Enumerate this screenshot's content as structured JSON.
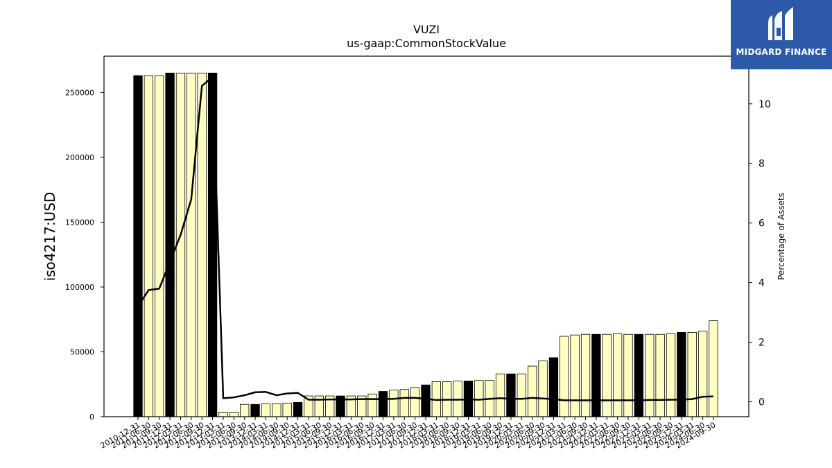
{
  "chart_data": {
    "type": "bar",
    "title": "VUZI",
    "subtitle": "us-gaap:CommonStockValue",
    "ylabel": "iso4217:USD",
    "y2label": "Percentage of Assets",
    "ylim": [
      0,
      278000
    ],
    "y2lim": [
      -0.5,
      11.6
    ],
    "yticks": [
      0,
      50000,
      100000,
      150000,
      200000,
      250000
    ],
    "y2ticks": [
      0,
      2,
      4,
      6,
      8,
      10
    ],
    "grid": false,
    "categories": [
      "2010-12-31",
      "2011-06-30",
      "2011-09-30",
      "2011-12-31",
      "2012-03-31",
      "2012-06-30",
      "2012-09-30",
      "2012-12-31",
      "2013-03-31",
      "2013-06-30",
      "2013-09-30",
      "2013-12-31",
      "2014-03-31",
      "2014-06-30",
      "2014-09-30",
      "2014-12-31",
      "2015-03-31",
      "2015-06-30",
      "2015-09-30",
      "2015-12-31",
      "2016-03-31",
      "2016-06-30",
      "2016-09-30",
      "2016-12-31",
      "2017-03-31",
      "2017-06-30",
      "2017-09-30",
      "2017-12-31",
      "2018-03-31",
      "2018-06-30",
      "2018-09-30",
      "2018-12-31",
      "2019-03-31",
      "2019-06-30",
      "2019-09-30",
      "2019-12-31",
      "2020-03-31",
      "2020-06-30",
      "2020-09-30",
      "2020-12-31",
      "2021-03-31",
      "2021-06-30",
      "2021-09-30",
      "2021-12-31",
      "2022-03-31",
      "2022-06-30",
      "2022-09-30",
      "2022-12-31",
      "2023-03-31",
      "2023-06-30",
      "2023-09-30",
      "2023-12-31",
      "2024-03-31",
      "2024-06-30",
      "2024-09-30"
    ],
    "series": [
      {
        "kind": "bar",
        "values": [
          263000,
          263000,
          263000,
          265000,
          265000,
          265000,
          265000,
          265000,
          3500,
          3500,
          9500,
          9500,
          10000,
          10000,
          10500,
          11000,
          16000,
          16000,
          16000,
          16000,
          16000,
          16000,
          17500,
          19500,
          20500,
          21000,
          22500,
          24500,
          27000,
          27000,
          27500,
          27500,
          28000,
          28000,
          33000,
          33000,
          33000,
          39000,
          43000,
          45500,
          62000,
          63000,
          63500,
          63500,
          63500,
          64000,
          63500,
          63500,
          63500,
          63500,
          64000,
          65000,
          65000,
          66000,
          74000
        ],
        "year_end": [
          true,
          false,
          false,
          true,
          false,
          false,
          false,
          true,
          false,
          false,
          false,
          true,
          false,
          false,
          false,
          true,
          false,
          false,
          false,
          true,
          false,
          false,
          false,
          true,
          false,
          false,
          false,
          true,
          false,
          false,
          false,
          true,
          false,
          false,
          false,
          true,
          false,
          false,
          false,
          true,
          false,
          false,
          false,
          true,
          false,
          false,
          false,
          true,
          false,
          false,
          false,
          true,
          false,
          false,
          false
        ],
        "colors": {
          "year_end": "#000000",
          "quarter": "#ffffc0",
          "edge": "#000000"
        }
      },
      {
        "kind": "line",
        "values": [
          3.2,
          3.75,
          3.8,
          4.7,
          5.6,
          6.8,
          10.6,
          10.9,
          0.12,
          0.15,
          0.22,
          0.32,
          0.33,
          0.22,
          0.28,
          0.3,
          0.07,
          0.07,
          0.08,
          0.08,
          0.08,
          0.09,
          0.09,
          0.09,
          0.1,
          0.13,
          0.13,
          0.1,
          0.06,
          0.07,
          0.07,
          0.08,
          0.07,
          0.1,
          0.12,
          0.1,
          0.1,
          0.13,
          0.11,
          0.09,
          0.05,
          0.05,
          0.05,
          0.05,
          0.05,
          0.05,
          0.05,
          0.05,
          0.06,
          0.06,
          0.07,
          0.07,
          0.09,
          0.17,
          0.18
        ],
        "color": "#000000"
      }
    ]
  },
  "logo": {
    "text": "MIDGARD FINANCE",
    "bg": "#2d5aa8",
    "icon": "midgard-m-logo"
  }
}
